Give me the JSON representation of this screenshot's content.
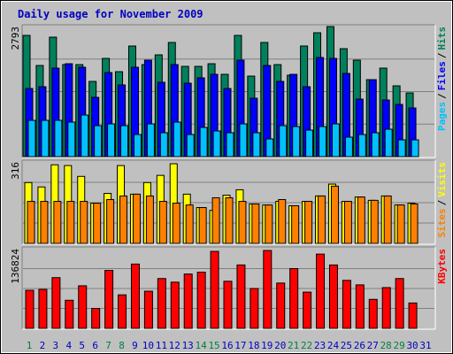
{
  "chart_data": {
    "type": "bar",
    "title": "Daily usage for November 2009",
    "title_color": "#0000c0",
    "categories": [
      "1",
      "2",
      "3",
      "4",
      "5",
      "6",
      "7",
      "8",
      "9",
      "10",
      "11",
      "12",
      "13",
      "14",
      "15",
      "16",
      "17",
      "18",
      "19",
      "20",
      "21",
      "22",
      "23",
      "24",
      "25",
      "26",
      "27",
      "28",
      "29",
      "30",
      "31"
    ],
    "category_colors": [
      "#008040",
      "#0000c0",
      "#0000c0",
      "#0000c0",
      "#0000c0",
      "#0000c0",
      "#008040",
      "#008040",
      "#0000c0",
      "#0000c0",
      "#0000c0",
      "#0000c0",
      "#0000c0",
      "#008040",
      "#008040",
      "#0000c0",
      "#0000c0",
      "#0000c0",
      "#0000c0",
      "#0000c0",
      "#008040",
      "#008040",
      "#0000c0",
      "#0000c0",
      "#0000c0",
      "#0000c0",
      "#0000c0",
      "#008040",
      "#008040",
      "#0000c0",
      "#0000c0"
    ],
    "legend_separator": "/",
    "panels": [
      {
        "ylim": [
          0,
          2793
        ],
        "yticks": [
          2793
        ],
        "series": [
          {
            "name": "Hits",
            "color": "#00805c",
            "values": [
              2603,
              1957,
              2565,
              1976,
              1976,
              1615,
              2109,
              1824,
              2375,
              1976,
              2185,
              2451,
              1938,
              1938,
              1995,
              1767,
              2603,
              1729,
              2451,
              1976,
              1748,
              2375,
              2660,
              2793,
              2318,
              2071,
              1653,
              1900,
              1520,
              1368,
              null
            ]
          },
          {
            "name": "Files",
            "color": "#0000ff",
            "values": [
              1463,
              1501,
              1900,
              1995,
              1919,
              1273,
              1805,
              1539,
              1919,
              2071,
              1596,
              1976,
              1577,
              1691,
              1767,
              1463,
              2071,
              1254,
              1957,
              1615,
              1767,
              1501,
              2128,
              2109,
              1786,
              1235,
              1653,
              1216,
              1121,
              1045,
              null
            ]
          },
          {
            "name": "Pages",
            "color": "#00c0ff",
            "values": [
              779,
              779,
              779,
              741,
              893,
              665,
              703,
              665,
              475,
              703,
              513,
              741,
              475,
              627,
              551,
              513,
              703,
              513,
              380,
              665,
              646,
              570,
              646,
              703,
              418,
              475,
              513,
              589,
              361,
              361,
              null
            ]
          }
        ]
      },
      {
        "ylim": [
          0,
          316
        ],
        "yticks": [
          316
        ],
        "series": [
          {
            "name": "Visits",
            "color": "#ffff00",
            "values": [
              236,
              219,
              305,
              302,
              260,
              156,
              194,
              302,
              191,
              236,
              264,
              309,
              191,
              139,
              128,
              187,
              208,
              153,
              149,
              163,
              146,
              163,
              184,
              230,
              163,
              180,
              167,
              184,
              149,
              156,
              null
            ]
          },
          {
            "name": "Sites",
            "color": "#ff8000",
            "values": [
              163,
              163,
              163,
              163,
              163,
              156,
              170,
              184,
              191,
              184,
              163,
              156,
              149,
              139,
              177,
              177,
              163,
              153,
              149,
              170,
              146,
              163,
              184,
              222,
              163,
              180,
              167,
              184,
              149,
              153,
              null
            ]
          }
        ]
      },
      {
        "ylim": [
          0,
          136824
        ],
        "yticks": [
          136824
        ],
        "series": [
          {
            "name": "KBytes",
            "color": "#ff0000",
            "values": [
              65310,
              66865,
              87080,
              48205,
              73085,
              34210,
              99520,
              57535,
              110405,
              63755,
              85525,
              79305,
              93300,
              96410,
              132175,
              80860,
              108850,
              68420,
              133730,
              77750,
              102630,
              62200,
              127510,
              108850,
              82415,
              74640,
              49760,
              69975,
              85525,
              43540,
              null
            ]
          }
        ]
      }
    ]
  }
}
